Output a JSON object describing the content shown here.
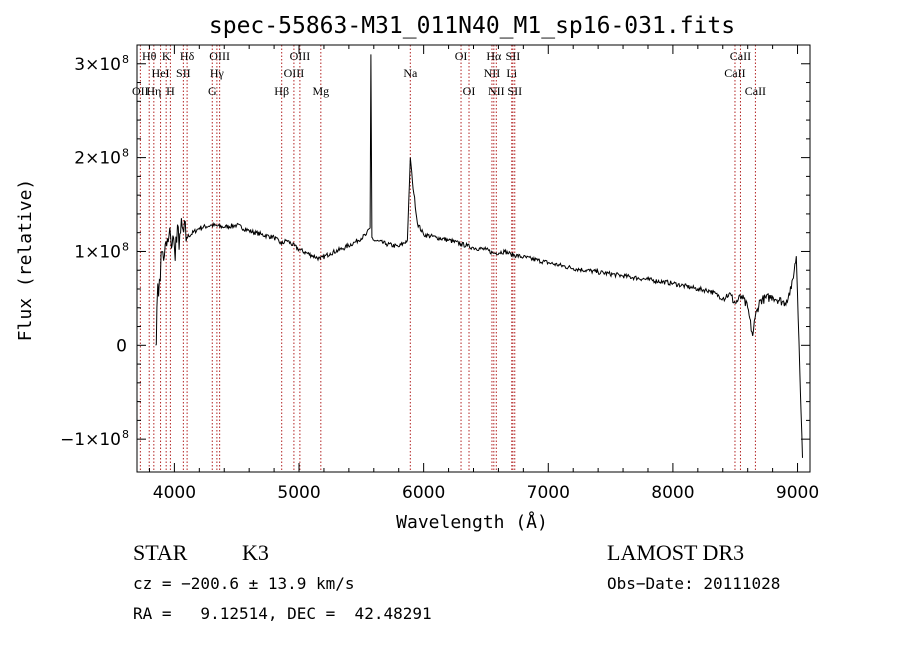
{
  "chart_data": {
    "type": "line",
    "title": "spec-55863-M31_011N40_M1_sp16-031.fits",
    "xlabel": "Wavelength (Å)",
    "ylabel": "Flux (relative)",
    "xlim": [
      3700,
      9100
    ],
    "ylim": [
      -135000000,
      320000000
    ],
    "x_ticks": [
      {
        "value": 4000,
        "label": "4000"
      },
      {
        "value": 5000,
        "label": "5000"
      },
      {
        "value": 6000,
        "label": "6000"
      },
      {
        "value": 7000,
        "label": "7000"
      },
      {
        "value": 8000,
        "label": "8000"
      },
      {
        "value": 9000,
        "label": "9000"
      }
    ],
    "y_ticks": [
      {
        "value": -100000000,
        "label": "−1×10",
        "exp": "8"
      },
      {
        "value": 0,
        "label": "0",
        "exp": ""
      },
      {
        "value": 100000000,
        "label": "1×10",
        "exp": "8"
      },
      {
        "value": 200000000,
        "label": "2×10",
        "exp": "8"
      },
      {
        "value": 300000000,
        "label": "3×10",
        "exp": "8"
      }
    ],
    "series": [
      {
        "name": "flux",
        "x": [
          3700,
          3850,
          3860,
          3880,
          3900,
          3920,
          3950,
          3970,
          4000,
          4050,
          4100,
          4200,
          4300,
          4400,
          4500,
          4600,
          4700,
          4800,
          4860,
          4900,
          5000,
          5100,
          5170,
          5250,
          5350,
          5450,
          5540,
          5570,
          5577,
          5585,
          5600,
          5700,
          5800,
          5870,
          5893,
          5910,
          5950,
          6000,
          6100,
          6200,
          6300,
          6350,
          6400,
          6500,
          6563,
          6650,
          6700,
          6800,
          7000,
          7200,
          7400,
          7600,
          7800,
          8000,
          8200,
          8300,
          8400,
          8450,
          8500,
          8550,
          8600,
          8640,
          8660,
          8700,
          8800,
          8900,
          8950,
          8990,
          9000,
          9040
        ],
        "y": [
          null,
          0,
          40000000,
          70000000,
          100000000,
          95000000,
          110000000,
          115000000,
          105000000,
          120000000,
          115000000,
          125000000,
          128000000,
          126000000,
          128000000,
          122000000,
          118000000,
          115000000,
          108000000,
          112000000,
          102000000,
          96000000,
          92000000,
          98000000,
          103000000,
          110000000,
          118000000,
          125000000,
          310000000,
          115000000,
          112000000,
          108000000,
          105000000,
          112000000,
          200000000,
          175000000,
          130000000,
          118000000,
          115000000,
          112000000,
          108000000,
          106000000,
          104000000,
          102000000,
          98000000,
          100000000,
          97000000,
          94000000,
          88000000,
          82000000,
          78000000,
          74000000,
          70000000,
          66000000,
          60000000,
          58000000,
          50000000,
          55000000,
          45000000,
          52000000,
          40000000,
          10000000,
          30000000,
          48000000,
          52000000,
          45000000,
          60000000,
          95000000,
          55000000,
          -120000000
        ]
      }
    ],
    "lines": [
      {
        "wave": 3727,
        "label": "OII",
        "row": 3
      },
      {
        "wave": 3798,
        "label": "Hθ",
        "row": 1
      },
      {
        "wave": 3835,
        "label": "Hη",
        "row": 3
      },
      {
        "wave": 3889,
        "label": "HeI",
        "row": 2
      },
      {
        "wave": 3934,
        "label": "K",
        "row": 1
      },
      {
        "wave": 3968,
        "label": "H",
        "row": 3
      },
      {
        "wave": 4072,
        "label": "SII",
        "row": 2
      },
      {
        "wave": 4102,
        "label": "Hδ",
        "row": 1
      },
      {
        "wave": 4304,
        "label": "G",
        "row": 3
      },
      {
        "wave": 4341,
        "label": "Hγ",
        "row": 2
      },
      {
        "wave": 4363,
        "label": "OIII",
        "row": 1
      },
      {
        "wave": 4861,
        "label": "Hβ",
        "row": 3
      },
      {
        "wave": 4959,
        "label": "OIII",
        "row": 2
      },
      {
        "wave": 5007,
        "label": "OIII",
        "row": 1
      },
      {
        "wave": 5175,
        "label": "Mg",
        "row": 3
      },
      {
        "wave": 5893,
        "label": "Na",
        "row": 2
      },
      {
        "wave": 6300,
        "label": "OI",
        "row": 1
      },
      {
        "wave": 6364,
        "label": "OI",
        "row": 3
      },
      {
        "wave": 6548,
        "label": "NII",
        "row": 2
      },
      {
        "wave": 6563,
        "label": "Hα",
        "row": 1
      },
      {
        "wave": 6583,
        "label": "NII",
        "row": 3
      },
      {
        "wave": 6707,
        "label": "Li",
        "row": 2
      },
      {
        "wave": 6716,
        "label": "SII",
        "row": 1
      },
      {
        "wave": 6731,
        "label": "SII",
        "row": 3
      },
      {
        "wave": 8498,
        "label": "CaII",
        "row": 2
      },
      {
        "wave": 8542,
        "label": "CaII",
        "row": 1
      },
      {
        "wave": 8662,
        "label": "CaII",
        "row": 3
      }
    ]
  },
  "info": {
    "class": "STAR",
    "subclass": "K3",
    "survey": "LAMOST DR3",
    "cz": "cz = −200.6 ± 13.9 km/s",
    "obs_date": "Obs−Date: 20111028",
    "coords": "RA =   9.12514, DEC =  42.48291"
  },
  "colors": {
    "line_marker": "#b22222",
    "spectrum": "#000000"
  }
}
